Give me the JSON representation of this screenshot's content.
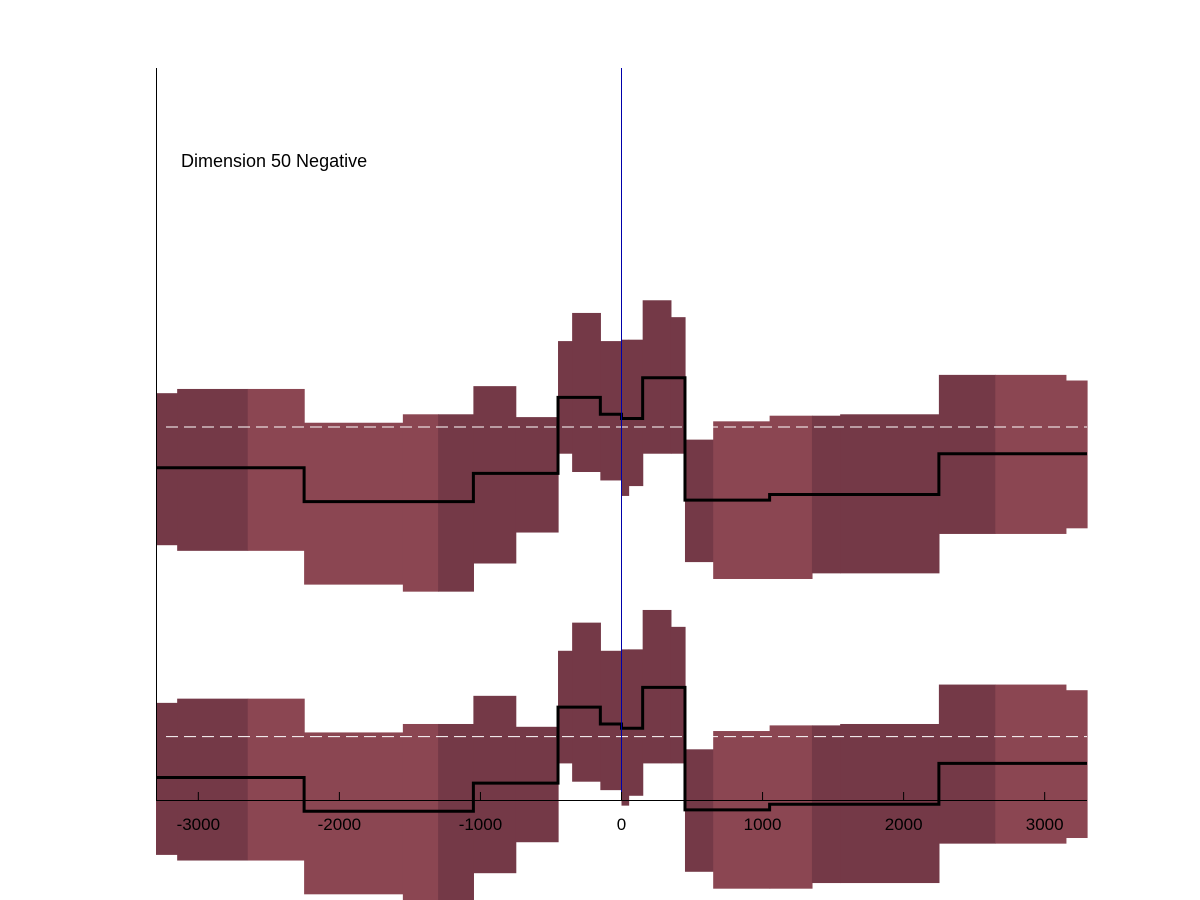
{
  "chart_data": {
    "type": "area",
    "title": "",
    "xlabel": "",
    "ylabel": "",
    "annotation": "Dimension 50 Negative",
    "xlim": [
      -3300,
      3300
    ],
    "xticks": [
      -3000,
      -2000,
      -1000,
      0,
      1000,
      2000,
      3000
    ],
    "xtick_labels": [
      "-3000",
      "-2000",
      "-1000",
      "0",
      "1000",
      "2000",
      "3000"
    ],
    "ylim": [
      -2.65,
      2.55
    ],
    "y_ticks_shown": false,
    "vertical_marker_x": 0,
    "colors": {
      "band_light": "#8b4652",
      "band_dark": "#743947",
      "mean_line": "#000000",
      "zero_line": "#0000aa",
      "reference_line": "#ffffff"
    },
    "panels": [
      {
        "name": "",
        "reference_y": 0.0
      },
      {
        "name": "",
        "reference_y": -2.2
      }
    ],
    "segments": [
      {
        "x0": -3300,
        "x1": -3150,
        "mean": -0.29,
        "lower": -0.84,
        "upper": 0.24,
        "shade": "dark"
      },
      {
        "x0": -3150,
        "x1": -2650,
        "mean": -0.29,
        "lower": -0.88,
        "upper": 0.27,
        "shade": "dark"
      },
      {
        "x0": -2650,
        "x1": -2250,
        "mean": -0.29,
        "lower": -0.88,
        "upper": 0.27,
        "shade": "light"
      },
      {
        "x0": -2250,
        "x1": -1550,
        "mean": -0.53,
        "lower": -1.12,
        "upper": 0.03,
        "shade": "light"
      },
      {
        "x0": -1550,
        "x1": -1300,
        "mean": -0.53,
        "lower": -1.17,
        "upper": 0.09,
        "shade": "light"
      },
      {
        "x0": -1300,
        "x1": -1050,
        "mean": -0.53,
        "lower": -1.17,
        "upper": 0.09,
        "shade": "dark"
      },
      {
        "x0": -1050,
        "x1": -750,
        "mean": -0.33,
        "lower": -0.97,
        "upper": 0.29,
        "shade": "dark"
      },
      {
        "x0": -750,
        "x1": -450,
        "mean": -0.33,
        "lower": -0.75,
        "upper": 0.07,
        "shade": "dark"
      },
      {
        "x0": -450,
        "x1": -350,
        "mean": 0.21,
        "lower": -0.19,
        "upper": 0.61,
        "shade": "dark"
      },
      {
        "x0": -350,
        "x1": -150,
        "mean": 0.21,
        "lower": -0.32,
        "upper": 0.81,
        "shade": "dark"
      },
      {
        "x0": -150,
        "x1": 0,
        "mean": 0.09,
        "lower": -0.38,
        "upper": 0.61,
        "shade": "dark"
      },
      {
        "x0": 0,
        "x1": 50,
        "mean": 0.06,
        "lower": -0.49,
        "upper": 0.62,
        "shade": "dark"
      },
      {
        "x0": 50,
        "x1": 150,
        "mean": 0.06,
        "lower": -0.42,
        "upper": 0.62,
        "shade": "dark"
      },
      {
        "x0": 150,
        "x1": 350,
        "mean": 0.35,
        "lower": -0.19,
        "upper": 0.9,
        "shade": "dark"
      },
      {
        "x0": 350,
        "x1": 450,
        "mean": 0.35,
        "lower": -0.19,
        "upper": 0.78,
        "shade": "dark"
      },
      {
        "x0": 450,
        "x1": 650,
        "mean": -0.52,
        "lower": -0.96,
        "upper": -0.09,
        "shade": "dark"
      },
      {
        "x0": 650,
        "x1": 1050,
        "mean": -0.52,
        "lower": -1.08,
        "upper": 0.04,
        "shade": "light"
      },
      {
        "x0": 1050,
        "x1": 1350,
        "mean": -0.48,
        "lower": -1.08,
        "upper": 0.08,
        "shade": "light"
      },
      {
        "x0": 1350,
        "x1": 1550,
        "mean": -0.48,
        "lower": -1.04,
        "upper": 0.08,
        "shade": "dark"
      },
      {
        "x0": 1550,
        "x1": 2250,
        "mean": -0.48,
        "lower": -1.04,
        "upper": 0.09,
        "shade": "dark"
      },
      {
        "x0": 2250,
        "x1": 2650,
        "mean": -0.19,
        "lower": -0.76,
        "upper": 0.37,
        "shade": "dark"
      },
      {
        "x0": 2650,
        "x1": 3150,
        "mean": -0.19,
        "lower": -0.76,
        "upper": 0.37,
        "shade": "light"
      },
      {
        "x0": 3150,
        "x1": 3300,
        "mean": -0.19,
        "lower": -0.72,
        "upper": 0.33,
        "shade": "light"
      }
    ]
  }
}
